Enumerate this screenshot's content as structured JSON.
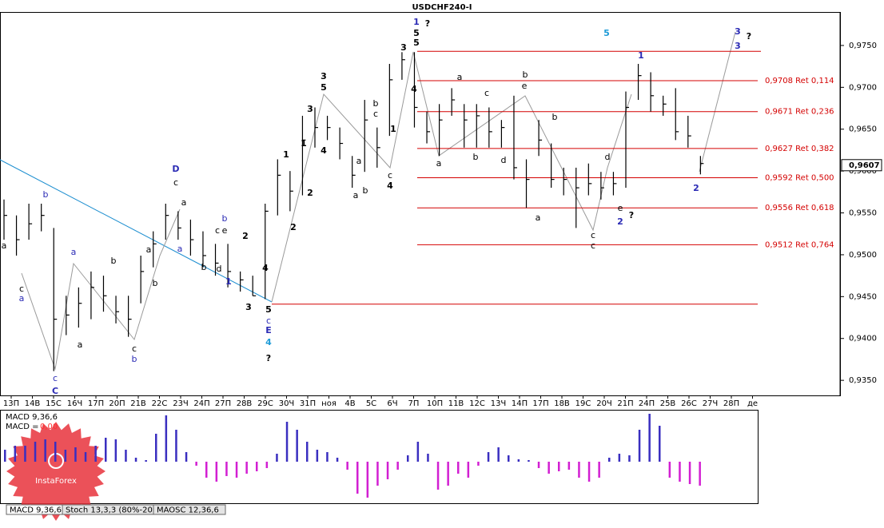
{
  "chart_data": [
    {
      "type": "hlc",
      "title": "USDCHF240-I",
      "color": "#000000",
      "high": [
        0.9566,
        0.9547,
        0.9561,
        0.9561,
        0.9532,
        0.9451,
        0.9461,
        0.948,
        0.9475,
        0.9451,
        0.9451,
        0.9499,
        0.9528,
        0.9561,
        0.9552,
        0.9542,
        0.9528,
        0.9513,
        0.9513,
        0.948,
        0.9475,
        0.9561,
        0.9614,
        0.96,
        0.9666,
        0.9676,
        0.9666,
        0.9652,
        0.9618,
        0.9685,
        0.9652,
        0.9728,
        0.9742,
        0.9742,
        0.9671,
        0.968,
        0.9699,
        0.968,
        0.968,
        0.9676,
        0.9661,
        0.969,
        0.9614,
        0.9661,
        0.9633,
        0.9604,
        0.9604,
        0.9609,
        0.9599,
        0.9599,
        0.9695,
        0.9728,
        0.9718,
        0.969,
        0.9699,
        0.9666,
        0.9618
      ],
      "low": [
        0.9518,
        0.9499,
        0.9518,
        0.9528,
        0.9361,
        0.9404,
        0.9413,
        0.9423,
        0.9432,
        0.9418,
        0.9402,
        0.9442,
        0.9485,
        0.9518,
        0.9518,
        0.9499,
        0.9485,
        0.9475,
        0.9461,
        0.9456,
        0.9451,
        0.9447,
        0.9547,
        0.9552,
        0.9571,
        0.9628,
        0.9637,
        0.9614,
        0.958,
        0.9599,
        0.9604,
        0.9642,
        0.9709,
        0.9652,
        0.9633,
        0.9618,
        0.9666,
        0.9628,
        0.9628,
        0.9628,
        0.9628,
        0.959,
        0.9556,
        0.9618,
        0.958,
        0.9571,
        0.9532,
        0.9571,
        0.9566,
        0.9571,
        0.958,
        0.9685,
        0.9671,
        0.9666,
        0.9637,
        0.9628,
        0.9596
      ],
      "close": [
        0.9547,
        0.9518,
        0.9537,
        0.9547,
        0.9423,
        0.9428,
        0.9442,
        0.9461,
        0.9451,
        0.9432,
        0.9423,
        0.948,
        0.9513,
        0.9547,
        0.9532,
        0.9518,
        0.9499,
        0.949,
        0.948,
        0.947,
        0.9451,
        0.9552,
        0.9595,
        0.9576,
        0.9637,
        0.9652,
        0.9652,
        0.9633,
        0.9595,
        0.9661,
        0.9628,
        0.9709,
        0.9733,
        0.9676,
        0.9647,
        0.9661,
        0.9685,
        0.9661,
        0.9666,
        0.9647,
        0.9652,
        0.9604,
        0.959,
        0.9637,
        0.959,
        0.959,
        0.958,
        0.9585,
        0.958,
        0.9585,
        0.9676,
        0.9714,
        0.969,
        0.968,
        0.9647,
        0.9642,
        0.9609
      ],
      "ylim": [
        0.9332,
        0.979
      ],
      "yticks": [
        {
          "value": 0.975,
          "label": "0,9750"
        },
        {
          "value": 0.97,
          "label": "0,9700"
        },
        {
          "value": 0.965,
          "label": "0,9650"
        },
        {
          "value": 0.96,
          "label": "0,9600"
        },
        {
          "value": 0.955,
          "label": "0,9550"
        },
        {
          "value": 0.95,
          "label": "0,9500"
        },
        {
          "value": 0.945,
          "label": "0,9450"
        },
        {
          "value": 0.94,
          "label": "0,9400"
        },
        {
          "value": 0.935,
          "label": "0,9350"
        }
      ],
      "x_labels": [
        "13П",
        "14В",
        "15С",
        "16Ч",
        "17П",
        "20П",
        "21В",
        "22С",
        "23Ч",
        "24П",
        "27П",
        "28В",
        "29С",
        "30Ч",
        "31П",
        "ноя",
        "4В",
        "5С",
        "6Ч",
        "7П",
        "10П",
        "11В",
        "12С",
        "13Ч",
        "14П",
        "17П",
        "18В",
        "19С",
        "20Ч",
        "21П",
        "24П",
        "25В",
        "26С",
        "27Ч",
        "28П",
        "де"
      ],
      "level_color": "#d40000",
      "levels": [
        {
          "value": 0.9708,
          "label": "0,9708 Ret 0,114"
        },
        {
          "value": 0.9671,
          "label": "0,9671 Ret 0,236"
        },
        {
          "value": 0.9627,
          "label": "0,9627 Ret 0,382"
        },
        {
          "value": 0.9592,
          "label": "0,9592 Ret 0,500"
        },
        {
          "value": 0.9556,
          "label": "0,9556 Ret 0,618"
        },
        {
          "value": 0.9512,
          "label": "0,9512 Ret 0,764"
        }
      ],
      "lines": [
        0.9743,
        0.9441
      ],
      "last_price": {
        "value": 0.9607,
        "label": "0,9607"
      },
      "annotations": [
        {
          "text": "a",
          "color": "#000000"
        },
        {
          "text": "c",
          "color": "#000000"
        },
        {
          "text": "a",
          "color": "#2b2bb5"
        },
        {
          "text": "b",
          "color": "#2b2bb5"
        },
        {
          "text": "c",
          "color": "#2b2bb5"
        },
        {
          "text": "C",
          "color": "#2b2bb5"
        },
        {
          "text": "a",
          "color": "#2b2bb5"
        },
        {
          "text": "a",
          "color": "#000000"
        },
        {
          "text": "b",
          "color": "#000000"
        },
        {
          "text": "c",
          "color": "#000000"
        },
        {
          "text": "b",
          "color": "#2b2bb5"
        },
        {
          "text": "a",
          "color": "#000000"
        },
        {
          "text": "b",
          "color": "#000000"
        },
        {
          "text": "D",
          "color": "#2b2bb5"
        },
        {
          "text": "c",
          "color": "#000000"
        },
        {
          "text": "a",
          "color": "#000000"
        },
        {
          "text": "a",
          "color": "#2b2bb5"
        },
        {
          "text": "b",
          "color": "#2b2bb5"
        },
        {
          "text": "c",
          "color": "#000000"
        },
        {
          "text": "e",
          "color": "#000000"
        },
        {
          "text": "b",
          "color": "#000000"
        },
        {
          "text": "d",
          "color": "#000000"
        },
        {
          "text": "1",
          "color": "#2b2bb5"
        },
        {
          "text": "2",
          "color": "#000000"
        },
        {
          "text": "3",
          "color": "#000000"
        },
        {
          "text": "4",
          "color": "#000000"
        },
        {
          "text": "5",
          "color": "#000000"
        },
        {
          "text": "c",
          "color": "#2b2bb5"
        },
        {
          "text": "E",
          "color": "#2b2bb5"
        },
        {
          "text": "4",
          "color": "#1e9bd7"
        },
        {
          "text": "?",
          "color": "#000000"
        },
        {
          "text": "1",
          "color": "#000000"
        },
        {
          "text": "2",
          "color": "#000000"
        },
        {
          "text": "1",
          "color": "#000000"
        },
        {
          "text": "2",
          "color": "#000000"
        },
        {
          "text": "3",
          "color": "#000000"
        },
        {
          "text": "3",
          "color": "#000000"
        },
        {
          "text": "5",
          "color": "#000000"
        },
        {
          "text": "4",
          "color": "#000000"
        },
        {
          "text": "a",
          "color": "#000000"
        },
        {
          "text": "a",
          "color": "#000000"
        },
        {
          "text": "b",
          "color": "#000000"
        },
        {
          "text": "b",
          "color": "#000000"
        },
        {
          "text": "c",
          "color": "#000000"
        },
        {
          "text": "1",
          "color": "#000000"
        },
        {
          "text": "c",
          "color": "#000000"
        },
        {
          "text": "4",
          "color": "#000000"
        },
        {
          "text": "3",
          "color": "#000000"
        },
        {
          "text": "4",
          "color": "#000000"
        },
        {
          "text": "1",
          "color": "#2b2bb5"
        },
        {
          "text": "5",
          "color": "#000000"
        },
        {
          "text": "5",
          "color": "#000000"
        },
        {
          "text": "?",
          "color": "#000000"
        },
        {
          "text": "a",
          "color": "#000000"
        },
        {
          "text": "a",
          "color": "#000000"
        },
        {
          "text": "b",
          "color": "#000000"
        },
        {
          "text": "c",
          "color": "#000000"
        },
        {
          "text": "d",
          "color": "#000000"
        },
        {
          "text": "b",
          "color": "#000000"
        },
        {
          "text": "e",
          "color": "#000000"
        },
        {
          "text": "b",
          "color": "#000000"
        },
        {
          "text": "a",
          "color": "#000000"
        },
        {
          "text": "5",
          "color": "#1e9bd7"
        },
        {
          "text": "d",
          "color": "#000000"
        },
        {
          "text": "c",
          "color": "#000000"
        },
        {
          "text": "c",
          "color": "#000000"
        },
        {
          "text": "e",
          "color": "#000000"
        },
        {
          "text": "2",
          "color": "#2b2bb5"
        },
        {
          "text": "?",
          "color": "#000000"
        },
        {
          "text": "1",
          "color": "#2b2bb5"
        },
        {
          "text": "2",
          "color": "#2b2bb5"
        },
        {
          "text": "3",
          "color": "#2b2bb5"
        },
        {
          "text": "3",
          "color": "#2b2bb5"
        },
        {
          "text": "?",
          "color": "#000000"
        }
      ]
    },
    {
      "type": "bar",
      "name": "MACD 9,36,6",
      "readout_label": "MACD =",
      "readout": "0,00",
      "positive_color": "#3a2fc0",
      "negative_color": "#d21fd2",
      "ylim": [
        -0.00104,
        0.00128
      ],
      "values": [
        0.0003,
        0.0004,
        0.0004,
        0.0005,
        0.00056,
        0.0005,
        0.0003,
        0.00036,
        0.00024,
        0.0004,
        0.0006,
        0.00056,
        0.0003,
        0.0001,
        4e-05,
        0.0007,
        0.00116,
        0.0008,
        0.00024,
        -0.0001,
        -0.0004,
        -0.0005,
        -0.00036,
        -0.0004,
        -0.0003,
        -0.00024,
        -0.00016,
        0.0002,
        0.001,
        0.0008,
        0.0005,
        0.0003,
        0.00024,
        0.0001,
        -0.0002,
        -0.0008,
        -0.0009,
        -0.0006,
        -0.00044,
        -0.0002,
        0.00016,
        0.0005,
        0.0002,
        -0.0007,
        -0.0006,
        -0.0003,
        -0.0004,
        -0.0001,
        0.00024,
        0.00036,
        0.00016,
        6e-05,
        4e-05,
        -0.00016,
        -0.0003,
        -0.00024,
        -0.0002,
        -0.0004,
        -0.0005,
        -0.0004,
        0.0001,
        0.0002,
        0.00016,
        0.0008,
        0.0012,
        0.0009,
        -0.0004,
        -0.0005,
        -0.00056,
        -0.0006
      ]
    }
  ],
  "tabs": [
    "MACD 9,36,6",
    "Stoch 13,3,3 (80%-20%)",
    "MAOSC 12,36,6"
  ],
  "watermark": "InstaForex"
}
